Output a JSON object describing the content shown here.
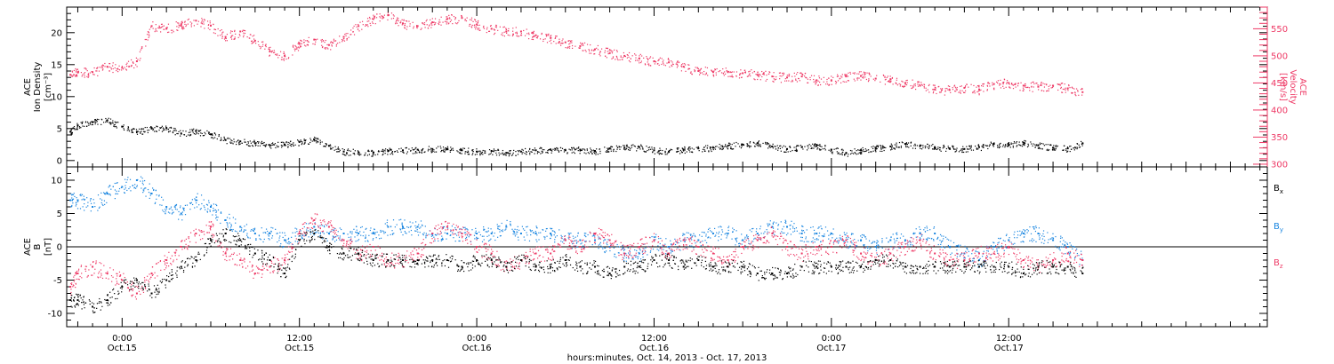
{
  "colors": {
    "black": "#000000",
    "red": "#ee3a66",
    "blue": "#1a86e0",
    "axis": "#000000"
  },
  "time_axis": {
    "tick_labels": [
      {
        "time": "0:00",
        "date": "Oct.15"
      },
      {
        "time": "12:00",
        "date": "Oct.15"
      },
      {
        "time": "0:00",
        "date": "Oct.16"
      },
      {
        "time": "12:00",
        "date": "Oct.16"
      },
      {
        "time": "0:00",
        "date": "Oct.17"
      },
      {
        "time": "12:00",
        "date": "Oct.17"
      }
    ],
    "xlabel": "hours:minutes, Oct. 14, 2013 - Oct. 17, 2013"
  },
  "chart_data": [
    {
      "type": "scatter",
      "x_unit": "hours since 2013-10-14 00:00",
      "xlim": [
        20.25,
        101.5
      ],
      "ylabel_lines": [
        "ACE",
        "Ion Density",
        "[cm⁻³]"
      ],
      "ylim": [
        -1,
        24
      ],
      "yticks": [
        0,
        5,
        10,
        15,
        20
      ],
      "right_ylabel_lines": [
        "ACE",
        "Velocity",
        "[km/s]"
      ],
      "right_ylim": [
        295,
        590
      ],
      "right_yticks": [
        300,
        350,
        400,
        450,
        500,
        550
      ],
      "series": [
        {
          "axis": "left",
          "color": "#000000",
          "x": [
            20.5,
            21,
            22,
            23,
            24,
            25,
            26,
            27,
            28,
            29,
            30,
            31,
            32,
            33,
            34,
            35,
            36,
            37,
            38,
            39,
            40,
            41,
            42,
            43,
            44,
            45,
            46,
            47,
            48,
            49,
            50,
            51,
            52,
            53,
            54,
            55,
            56,
            57,
            58,
            59,
            60,
            61,
            62,
            63,
            64,
            65,
            66,
            67,
            68,
            69,
            70,
            71,
            72,
            73,
            74,
            75,
            76,
            77,
            78,
            79,
            80,
            81,
            82,
            83,
            84,
            85,
            86,
            87,
            88,
            89
          ],
          "values": [
            4.5,
            5.5,
            6,
            6.3,
            5.3,
            4.5,
            5,
            5.1,
            4.2,
            4.6,
            4.1,
            3.2,
            3.0,
            2.7,
            2.4,
            2.5,
            2.9,
            3.3,
            2.3,
            1.4,
            1.3,
            1.2,
            1.5,
            1.6,
            1.7,
            1.8,
            1.8,
            1.6,
            1.4,
            1.5,
            1.2,
            1.4,
            1.6,
            1.7,
            1.6,
            1.7,
            1.5,
            1.9,
            2.0,
            2.1,
            1.6,
            1.4,
            1.7,
            1.9,
            2.0,
            2.3,
            2.5,
            2.7,
            2.2,
            1.8,
            2.1,
            2.3,
            1.7,
            1.2,
            1.6,
            1.9,
            2.2,
            2.6,
            2.3,
            2.1,
            1.9,
            1.8,
            2.1,
            2.6,
            2.4,
            2.8,
            2.4,
            2.0,
            1.9,
            2.7
          ]
        },
        {
          "axis": "right",
          "color": "#ee3a66",
          "x": [
            20.5,
            21,
            22,
            23,
            24,
            25,
            26,
            27,
            28,
            29,
            30,
            31,
            32,
            33,
            34,
            35,
            36,
            37,
            38,
            39,
            40,
            41,
            42,
            43,
            44,
            45,
            46,
            47,
            48,
            49,
            50,
            51,
            52,
            53,
            54,
            55,
            56,
            57,
            58,
            59,
            60,
            61,
            62,
            63,
            64,
            65,
            66,
            67,
            68,
            69,
            70,
            71,
            72,
            73,
            74,
            75,
            76,
            77,
            78,
            79,
            80,
            81,
            82,
            83,
            84,
            85,
            86,
            87,
            88,
            89
          ],
          "values": [
            465,
            470,
            470,
            480,
            478,
            490,
            555,
            550,
            558,
            565,
            556,
            535,
            545,
            528,
            508,
            500,
            522,
            530,
            520,
            535,
            555,
            568,
            575,
            560,
            555,
            562,
            568,
            570,
            558,
            550,
            545,
            545,
            538,
            533,
            525,
            518,
            512,
            505,
            500,
            495,
            490,
            488,
            480,
            472,
            470,
            470,
            468,
            465,
            462,
            460,
            462,
            455,
            455,
            462,
            463,
            458,
            457,
            450,
            445,
            438,
            437,
            441,
            438,
            448,
            450,
            445,
            443,
            445,
            440,
            433
          ]
        }
      ]
    },
    {
      "type": "scatter",
      "x_unit": "hours since 2013-10-14 00:00",
      "xlim": [
        20.25,
        101.5
      ],
      "ylabel_lines": [
        "ACE",
        "B",
        "[nT]"
      ],
      "ylim": [
        -12,
        12
      ],
      "yticks": [
        -10,
        -5,
        0,
        5,
        10
      ],
      "zero_line": true,
      "legend_position": "right",
      "series": [
        {
          "name": "Bx",
          "color": "#000000",
          "x": [
            20.5,
            21,
            22,
            23,
            24,
            25,
            26,
            27,
            28,
            29,
            30,
            31,
            32,
            33,
            34,
            35,
            36,
            37,
            38,
            39,
            40,
            41,
            42,
            43,
            44,
            45,
            46,
            47,
            48,
            49,
            50,
            51,
            52,
            53,
            54,
            55,
            56,
            57,
            58,
            59,
            60,
            61,
            62,
            63,
            64,
            65,
            66,
            67,
            68,
            69,
            70,
            71,
            72,
            73,
            74,
            75,
            76,
            77,
            78,
            79,
            80,
            81,
            82,
            83,
            84,
            85,
            86,
            87,
            88,
            89
          ],
          "values": [
            -8,
            -8,
            -9,
            -8,
            -6,
            -5,
            -7,
            -5,
            -3,
            -2,
            1,
            2,
            1,
            -1,
            -2,
            -4,
            1,
            2,
            0,
            -1,
            -1,
            -2,
            -2,
            -2,
            -2,
            -2,
            -2,
            -3,
            -2,
            -2,
            -3,
            -2,
            -3,
            -3,
            -2,
            -3,
            -3,
            -4,
            -3,
            -3,
            -2,
            -2,
            -3,
            -2,
            -3,
            -3,
            -3,
            -4,
            -4,
            -4,
            -3,
            -3,
            -3,
            -3,
            -3,
            -2,
            -2,
            -3,
            -3,
            -3,
            -3,
            -3,
            -3,
            -3,
            -3,
            -4,
            -3,
            -3,
            -3,
            -4
          ]
        },
        {
          "name": "By",
          "color": "#1a86e0",
          "x": [
            20.5,
            21,
            22,
            23,
            24,
            25,
            26,
            27,
            28,
            29,
            30,
            31,
            32,
            33,
            34,
            35,
            36,
            37,
            38,
            39,
            40,
            41,
            42,
            43,
            44,
            45,
            46,
            47,
            48,
            49,
            50,
            51,
            52,
            53,
            54,
            55,
            56,
            57,
            58,
            59,
            60,
            61,
            62,
            63,
            64,
            65,
            66,
            67,
            68,
            69,
            70,
            71,
            72,
            73,
            74,
            75,
            76,
            77,
            78,
            79,
            80,
            81,
            82,
            83,
            84,
            85,
            86,
            87,
            88,
            89
          ],
          "values": [
            7,
            7,
            6,
            8,
            9,
            10,
            8,
            6,
            5,
            7,
            6,
            4,
            3,
            2,
            2,
            1,
            2,
            3,
            2,
            2,
            2,
            2,
            3,
            3,
            3,
            2,
            2,
            2,
            2,
            2,
            3,
            2,
            2,
            2,
            1,
            1,
            1,
            0,
            -1,
            -1,
            1,
            0,
            1,
            1,
            2,
            2,
            1,
            2,
            3,
            3,
            2,
            2,
            2,
            1,
            1,
            0,
            1,
            1,
            2,
            2,
            0,
            -1,
            -2,
            0,
            1,
            2,
            2,
            1,
            0,
            -2
          ]
        },
        {
          "name": "Bz",
          "color": "#ee3a66",
          "x": [
            20.5,
            21,
            22,
            23,
            24,
            25,
            26,
            27,
            28,
            29,
            30,
            31,
            32,
            33,
            34,
            35,
            36,
            37,
            38,
            39,
            40,
            41,
            42,
            43,
            44,
            45,
            46,
            47,
            48,
            49,
            50,
            51,
            52,
            53,
            54,
            55,
            56,
            57,
            58,
            59,
            60,
            61,
            62,
            63,
            64,
            65,
            66,
            67,
            68,
            69,
            70,
            71,
            72,
            73,
            74,
            75,
            76,
            77,
            78,
            79,
            80,
            81,
            82,
            83,
            84,
            85,
            86,
            87,
            88,
            89
          ],
          "values": [
            -6,
            -4,
            -3,
            -4,
            -5,
            -7,
            -4,
            -2,
            0,
            2,
            3,
            -1,
            -2,
            -4,
            -3,
            -2,
            2,
            4,
            3,
            1,
            -1,
            0,
            -2,
            -2,
            -1,
            2,
            3,
            2,
            0,
            -1,
            -3,
            -2,
            -1,
            -1,
            1,
            0,
            2,
            1,
            -1,
            0,
            1,
            -1,
            1,
            0,
            -1,
            -2,
            0,
            1,
            2,
            0,
            -1,
            0,
            0,
            1,
            -1,
            -2,
            -1,
            0,
            1,
            -1,
            -2,
            -2,
            -1,
            -1,
            0,
            -2,
            -3,
            -2,
            -1,
            -2
          ]
        }
      ]
    }
  ]
}
